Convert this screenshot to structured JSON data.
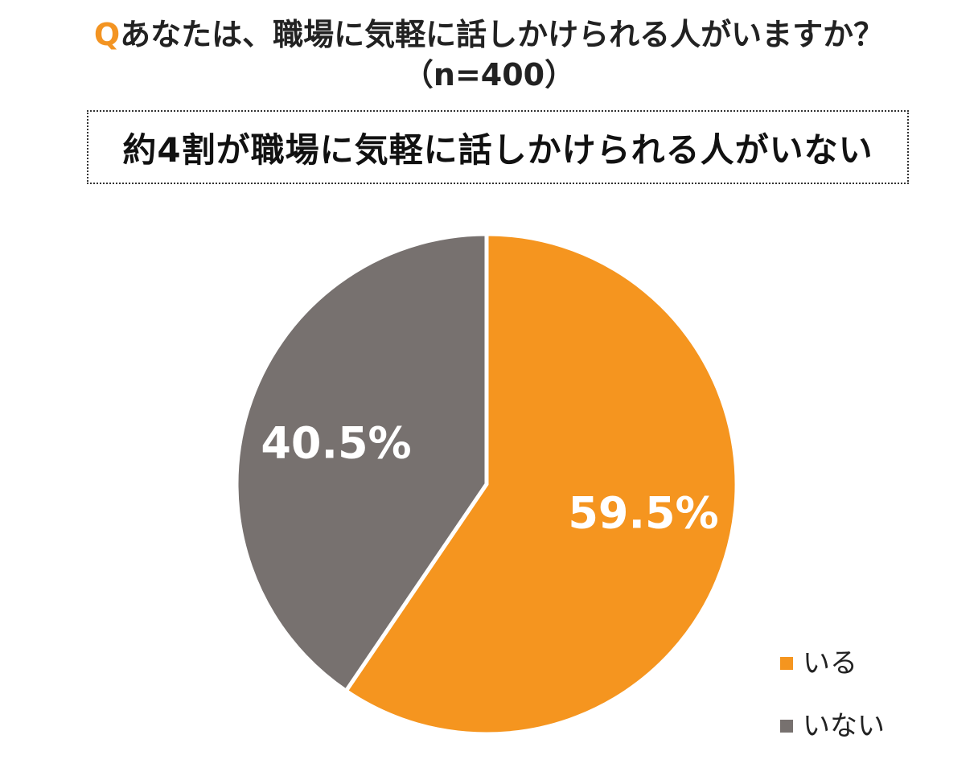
{
  "header": {
    "q_mark": "Q",
    "question": "あなたは、職場に気軽に話しかけられる人がいますか？",
    "sample_size": "（n=400）",
    "headline": "約4割が職場に気軽に話しかけられる人がいない"
  },
  "colors": {
    "accent": "#f39422",
    "orange_slice": "#f5951f",
    "gray_slice": "#77716f",
    "separator": "#ffffff"
  },
  "chart_data": {
    "type": "pie",
    "title": "",
    "slices": [
      {
        "name": "いる",
        "value": 59.5,
        "label": "59.5%",
        "color": "#f5951f"
      },
      {
        "name": "いない",
        "value": 40.5,
        "label": "40.5%",
        "color": "#77716f"
      }
    ],
    "start_angle_deg": 0,
    "direction": "clockwise",
    "legend_placement": "bottom-right"
  }
}
